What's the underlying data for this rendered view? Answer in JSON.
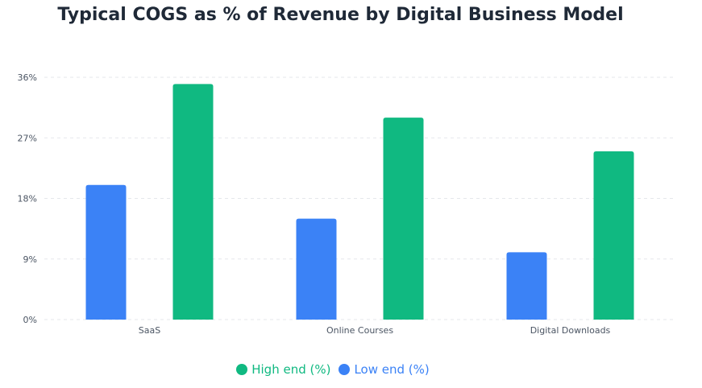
{
  "chart_data": {
    "type": "bar",
    "title": "Typical COGS as % of Revenue by Digital Business Model",
    "categories": [
      "SaaS",
      "Online Courses",
      "Digital Downloads"
    ],
    "series": [
      {
        "name": "Low end (%)",
        "color": "#3b82f6",
        "values": [
          20,
          15,
          10
        ]
      },
      {
        "name": "High end (%)",
        "color": "#10b981",
        "values": [
          35,
          30,
          25
        ]
      }
    ],
    "ylim": [
      0,
      36
    ],
    "yticks": [
      0,
      9,
      18,
      27,
      36
    ],
    "ytick_labels": [
      "0%",
      "9%",
      "18%",
      "27%",
      "36%"
    ],
    "grid": true,
    "legend_position": "bottom",
    "legend_order": [
      "High end (%)",
      "Low end (%)"
    ]
  }
}
